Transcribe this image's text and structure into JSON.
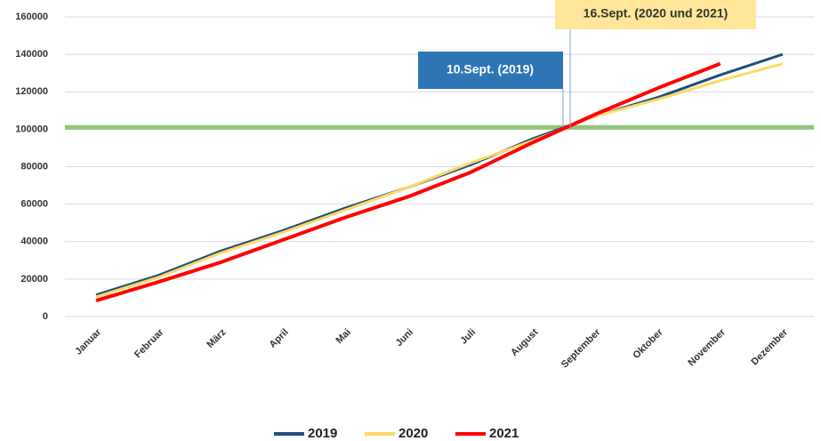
{
  "chart_data": {
    "type": "line",
    "categories": [
      "Januar",
      "Februar",
      "März",
      "April",
      "Mai",
      "Juni",
      "Juli",
      "August",
      "September",
      "Oktober",
      "November",
      "Dezember"
    ],
    "series": [
      {
        "name": "2019",
        "color": "#1f4e79",
        "values": [
          11500,
          22000,
          35000,
          46000,
          58000,
          69000,
          81000,
          95000,
          107000,
          117000,
          129000,
          140000
        ]
      },
      {
        "name": "2020",
        "color": "#ffd966",
        "values": [
          10500,
          21000,
          34000,
          45000,
          57000,
          69000,
          82000,
          94000,
          107000,
          116000,
          126000,
          135000
        ]
      },
      {
        "name": "2021",
        "color": "#ff0000",
        "values": [
          8500,
          18500,
          29000,
          41000,
          53000,
          64000,
          77000,
          93000,
          108000,
          122000,
          135000,
          null
        ]
      }
    ],
    "threshold": {
      "value": 101000,
      "color": "#92c47c"
    },
    "annotations": [
      "16.Sept. (2020 und 2021)",
      "10.Sept. (2019)"
    ],
    "ylim": [
      0,
      160000
    ],
    "yticks": [
      0,
      20000,
      40000,
      60000,
      80000,
      100000,
      120000,
      140000,
      160000
    ],
    "grid": true,
    "legend": "bottom"
  }
}
